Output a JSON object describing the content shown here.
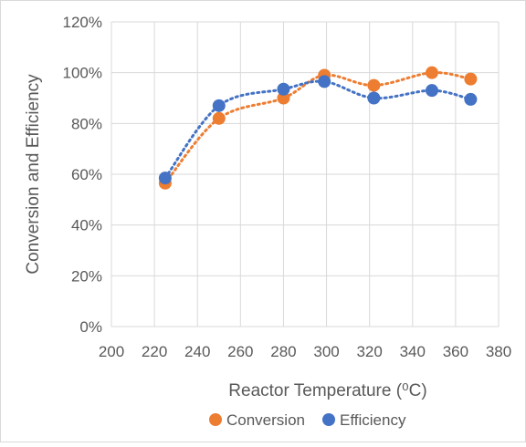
{
  "chart_data": {
    "type": "scatter",
    "title": "",
    "xlabel": "Reactor Temperature (⁰C)",
    "ylabel": "Conversion and Efficiency",
    "xlim": [
      200,
      380
    ],
    "ylim": [
      0,
      1.2
    ],
    "x_ticks": [
      "200",
      "220",
      "240",
      "260",
      "280",
      "300",
      "320",
      "340",
      "360",
      "380"
    ],
    "y_ticks": [
      "0%",
      "20%",
      "40%",
      "60%",
      "80%",
      "100%",
      "120%"
    ],
    "grid": true,
    "legend_position": "bottom",
    "trendlines": "dotted polynomial",
    "series": [
      {
        "name": "Conversion",
        "color": "#ED7D31",
        "points": [
          {
            "x": 225,
            "y": 0.565
          },
          {
            "x": 250,
            "y": 0.82
          },
          {
            "x": 280,
            "y": 0.9
          },
          {
            "x": 299,
            "y": 0.99
          },
          {
            "x": 322,
            "y": 0.95
          },
          {
            "x": 349,
            "y": 1.0
          },
          {
            "x": 367,
            "y": 0.975
          }
        ]
      },
      {
        "name": "Efficiency",
        "color": "#4472C4",
        "points": [
          {
            "x": 225,
            "y": 0.585
          },
          {
            "x": 250,
            "y": 0.87
          },
          {
            "x": 280,
            "y": 0.935
          },
          {
            "x": 299,
            "y": 0.965
          },
          {
            "x": 322,
            "y": 0.9
          },
          {
            "x": 349,
            "y": 0.93
          },
          {
            "x": 367,
            "y": 0.895
          }
        ]
      }
    ]
  }
}
